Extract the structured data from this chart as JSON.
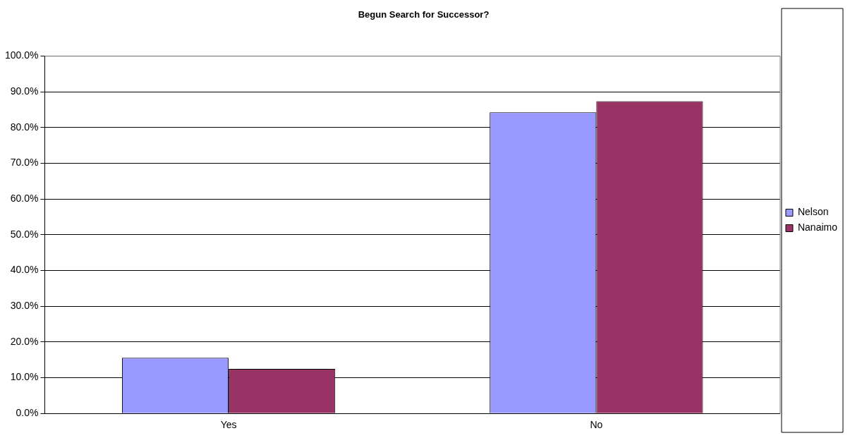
{
  "chart_data": {
    "type": "bar",
    "title": "Begun Search for Successor?",
    "categories": [
      "Yes",
      "No"
    ],
    "series": [
      {
        "name": "Nelson",
        "color": "#9999ff",
        "values": [
          15.6,
          84.3
        ]
      },
      {
        "name": "Nanaimo",
        "color": "#993366",
        "values": [
          12.5,
          87.4
        ]
      }
    ],
    "ylim": [
      0,
      100
    ],
    "yticks": [
      {
        "value": 0,
        "label": "0.0%"
      },
      {
        "value": 10,
        "label": "10.0%"
      },
      {
        "value": 20,
        "label": "20.0%"
      },
      {
        "value": 30,
        "label": "30.0%"
      },
      {
        "value": 40,
        "label": "40.0%"
      },
      {
        "value": 50,
        "label": "50.0%"
      },
      {
        "value": 60,
        "label": "60.0%"
      },
      {
        "value": 70,
        "label": "70.0%"
      },
      {
        "value": 80,
        "label": "80.0%"
      },
      {
        "value": 90,
        "label": "90.0%"
      },
      {
        "value": 100,
        "label": "100.0%"
      }
    ],
    "grid": "y",
    "legend": "right"
  }
}
